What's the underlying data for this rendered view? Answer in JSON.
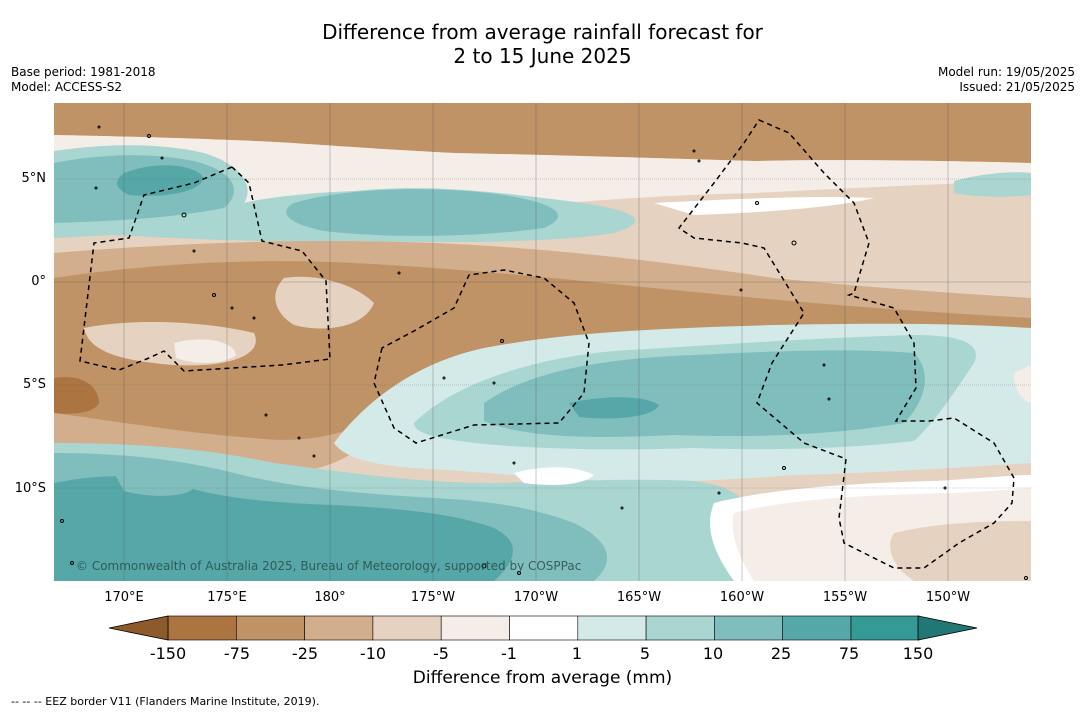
{
  "title": {
    "line1": "Difference from average rainfall forecast for",
    "line2": "2 to 15 June 2025"
  },
  "meta_left": {
    "base_period": "Base period: 1981-2018",
    "model": "Model: ACCESS-S2"
  },
  "meta_right": {
    "model_run": "Model run: 19/05/2025",
    "issued": "Issued: 21/05/2025"
  },
  "map": {
    "latitude_labels": [
      "5°N",
      "0°",
      "5°S",
      "10°S"
    ],
    "longitude_labels": [
      "170°E",
      "175°E",
      "180°",
      "175°W",
      "170°W",
      "165°W",
      "160°W",
      "155°W",
      "150°W"
    ],
    "copyright": "© Commonwealth of Australia 2025, Bureau of Meteorology, supported by COSPPac"
  },
  "colorbar": {
    "title": "Difference from average (mm)",
    "tick_labels": [
      "-150",
      "-75",
      "-25",
      "-10",
      "-5",
      "-1",
      "1",
      "5",
      "10",
      "25",
      "75",
      "150"
    ],
    "colors": [
      "#8c5a2b",
      "#ab7440",
      "#bf9366",
      "#d2ae8c",
      "#e6d2c0",
      "#f5ede8",
      "#ffffff",
      "#d4eae8",
      "#aad6d2",
      "#80bebd",
      "#56a8a8",
      "#359995",
      "#207773"
    ]
  },
  "footnote": "--  --  -- EEZ border V11 (Flanders Marine Institute, 2019)."
}
